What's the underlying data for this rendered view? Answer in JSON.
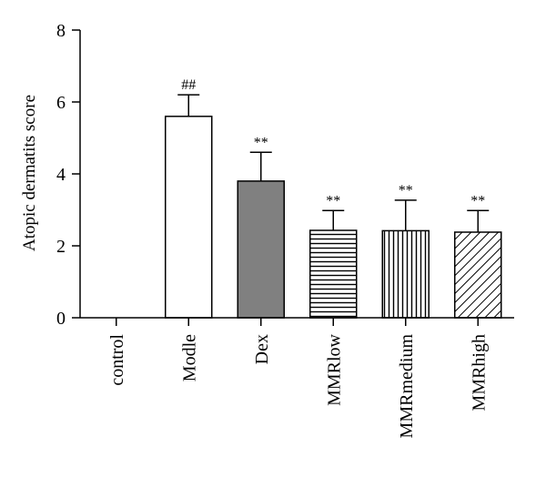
{
  "chart_data": {
    "type": "bar",
    "ylabel": "Atopic dermatits score",
    "ylim": [
      0,
      8
    ],
    "yticks": [
      0,
      2,
      4,
      6,
      8
    ],
    "grid": false,
    "categories": [
      "control",
      "Modle",
      "Dex",
      "MMRlow",
      "MMRmedium",
      "MMRhigh"
    ],
    "values": [
      0,
      5.6,
      3.8,
      2.43,
      2.42,
      2.38
    ],
    "errors": [
      0,
      0.6,
      0.8,
      0.55,
      0.85,
      0.6
    ],
    "significance": [
      "",
      "##",
      "**",
      "**",
      "**",
      "**"
    ],
    "fills": [
      "solid-white",
      "solid-white",
      "solid-gray",
      "horizontal-lines",
      "vertical-lines",
      "diagonal-lines"
    ],
    "colors": {
      "axis": "#000000",
      "dex_fill": "#808080",
      "bar_fill": "#ffffff"
    }
  }
}
